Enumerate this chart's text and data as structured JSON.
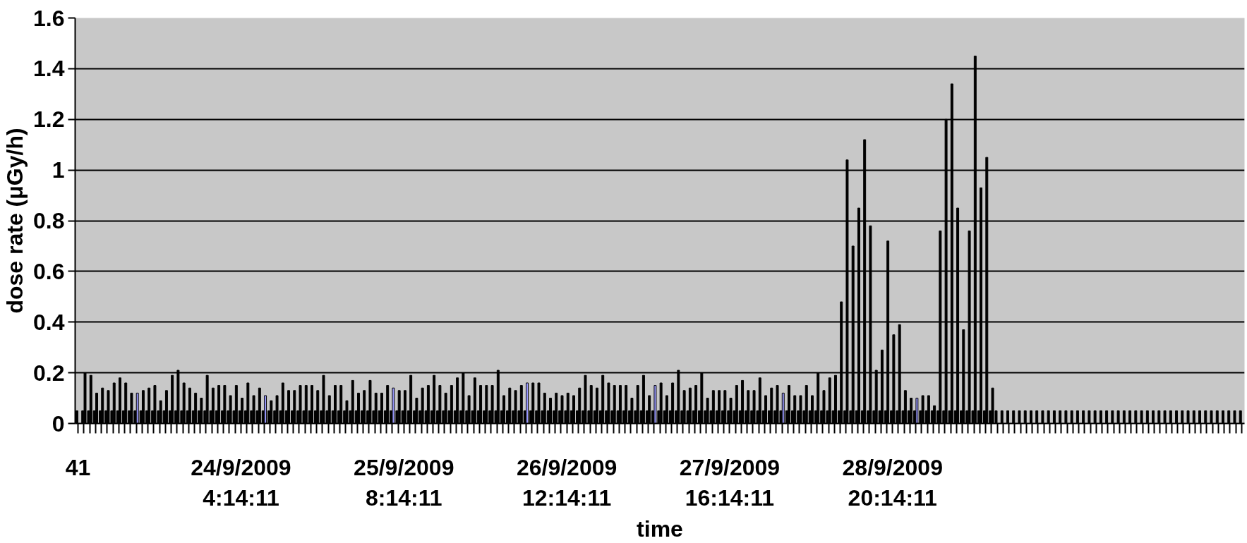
{
  "chart_data": {
    "type": "bar",
    "xlabel": "time",
    "ylabel": "dose rate (μGy/h)",
    "categories": [
      "41",
      null,
      null,
      null,
      null,
      null,
      null,
      null,
      null,
      null,
      null,
      null,
      null,
      null,
      null,
      null,
      null,
      null,
      null,
      null,
      null,
      null,
      null,
      null,
      null,
      null,
      null,
      null,
      "24/9/2009\n4:14:11",
      null,
      null,
      null,
      null,
      null,
      null,
      null,
      null,
      null,
      null,
      null,
      null,
      null,
      null,
      null,
      null,
      null,
      null,
      null,
      null,
      null,
      null,
      null,
      null,
      null,
      null,
      null,
      "25/9/2009\n8:14:11",
      null,
      null,
      null,
      null,
      null,
      null,
      null,
      null,
      null,
      null,
      null,
      null,
      null,
      null,
      null,
      null,
      null,
      null,
      null,
      null,
      null,
      null,
      null,
      null,
      null,
      null,
      null,
      "26/9/2009\n12:14:11",
      null,
      null,
      null,
      null,
      null,
      null,
      null,
      null,
      null,
      null,
      null,
      null,
      null,
      null,
      null,
      null,
      null,
      null,
      null,
      null,
      null,
      null,
      null,
      null,
      null,
      null,
      null,
      "27/9/2009\n16:14:11",
      null,
      null,
      null,
      null,
      null,
      null,
      null,
      null,
      null,
      null,
      null,
      null,
      null,
      null,
      null,
      null,
      null,
      null,
      null,
      null,
      null,
      null,
      null,
      null,
      null,
      null,
      null,
      "28/9/2009\n20:14:11",
      null,
      null,
      null,
      null,
      null,
      null,
      null,
      null,
      null,
      null,
      null,
      null,
      null,
      null,
      null,
      null,
      null,
      null,
      null,
      null,
      null,
      null,
      null,
      null,
      null,
      null,
      null,
      null,
      null,
      null,
      null,
      null,
      null,
      null,
      null,
      null,
      null,
      null,
      null,
      null,
      null,
      null,
      null,
      null,
      null,
      null,
      null,
      null,
      null,
      null,
      null,
      null,
      null,
      null,
      null,
      null,
      null,
      null,
      null,
      null
    ],
    "series": [
      {
        "color": "#000000",
        "values": [
          0.05,
          0.05,
          0.05,
          0.05,
          0.05,
          0.05,
          0.05,
          0.05,
          0.05,
          0.05,
          0.05,
          0.05,
          0.05,
          0.05,
          0.05,
          0.05,
          0.05,
          0.05,
          0.05,
          0.05,
          0.05,
          0.05,
          0.05,
          0.05,
          0.05,
          0.05,
          0.05,
          0.05,
          0.05,
          0.05,
          0.05,
          0.05,
          0.05,
          0.05,
          0.05,
          0.05,
          0.05,
          0.05,
          0.05,
          0.05,
          0.05,
          0.05,
          0.05,
          0.05,
          0.05,
          0.05,
          0.05,
          0.05,
          0.05,
          0.05,
          0.05,
          0.05,
          0.05,
          0.05,
          0.05,
          0.05,
          0.05,
          0.05,
          0.05,
          0.05,
          0.05,
          0.05,
          0.05,
          0.05,
          0.05,
          0.05,
          0.05,
          0.05,
          0.05,
          0.05,
          0.05,
          0.05,
          0.05,
          0.05,
          0.05,
          0.05,
          0.05,
          0.05,
          0.05,
          0.05,
          0.05,
          0.05,
          0.05,
          0.05,
          0.05,
          0.05,
          0.05,
          0.05,
          0.05,
          0.05,
          0.05,
          0.05,
          0.05,
          0.05,
          0.05,
          0.05,
          0.05,
          0.05,
          0.05,
          0.05,
          0.05,
          0.05,
          0.05,
          0.05,
          0.05,
          0.05,
          0.05,
          0.05,
          0.05,
          0.05,
          0.05,
          0.05,
          0.05,
          0.05,
          0.05,
          0.05,
          0.05,
          0.05,
          0.05,
          0.05,
          0.05,
          0.05,
          0.05,
          0.05,
          0.05,
          0.05,
          0.05,
          0.05,
          0.05,
          0.05,
          0.05,
          0.05,
          0.05,
          0.05,
          0.05,
          0.05,
          0.05,
          0.05,
          0.05,
          0.05,
          0.05,
          0.05,
          0.05,
          0.05,
          0.05,
          0.05,
          0.05,
          0.05,
          0.05,
          0.05,
          0.05,
          0.05,
          0.05,
          0.05,
          0.05,
          0.05,
          0.05,
          0.05,
          0.05,
          0.05,
          0.05,
          0.05,
          0.05,
          0.05,
          0.05,
          0.05,
          0.05,
          0.05,
          0.05,
          0.05,
          0.05,
          0.05,
          0.05,
          0.05,
          0.05,
          0.05,
          0.05,
          0.05,
          0.05,
          0.05,
          0.05,
          0.05,
          0.05,
          0.05,
          0.05,
          0.05,
          0.05,
          0.05,
          0.05,
          0.05,
          0.05,
          0.05,
          0.05,
          0.05,
          0.05,
          0.05,
          0.05,
          0.05,
          0.05,
          0.05,
          0.05
        ]
      },
      {
        "colors": [
          "#000000",
          "#000000",
          "#000000",
          "#000000",
          "#000000",
          "#000000",
          "#000000",
          "#000000",
          "#000000",
          "#000000",
          "#9999ff",
          "#000000",
          "#000000",
          "#000000",
          "#000000",
          "#000000",
          "#000000",
          "#000000",
          "#000000",
          "#000000",
          "#000000",
          "#000000",
          "#000000",
          "#000000",
          "#000000",
          "#000000",
          "#000000",
          "#000000",
          "#000000",
          "#000000",
          "#000000",
          "#000000",
          "#9999ff",
          "#000000",
          "#000000",
          "#000000",
          "#000000",
          "#000000",
          "#000000",
          "#000000",
          "#000000",
          "#000000",
          "#000000",
          "#000000",
          "#000000",
          "#000000",
          "#000000",
          "#000000",
          "#000000",
          "#000000",
          "#000000",
          "#000000",
          "#000000",
          "#000000",
          "#9999ff",
          "#000000",
          "#000000",
          "#000000",
          "#000000",
          "#000000",
          "#000000",
          "#000000",
          "#000000",
          "#000000",
          "#000000",
          "#000000",
          "#000000",
          "#000000",
          "#000000",
          "#000000",
          "#000000",
          "#000000",
          "#000000",
          "#000000",
          "#000000",
          "#000000",
          "#000000",
          "#9999ff",
          "#000000",
          "#000000",
          "#000000",
          "#000000",
          "#000000",
          "#000000",
          "#000000",
          "#000000",
          "#000000",
          "#000000",
          "#000000",
          "#000000",
          "#000000",
          "#000000",
          "#000000",
          "#000000",
          "#000000",
          "#000000",
          "#000000",
          "#000000",
          "#000000",
          "#9999ff",
          "#000000",
          "#000000",
          "#000000",
          "#000000",
          "#000000",
          "#000000",
          "#000000",
          "#000000",
          "#000000",
          "#000000",
          "#000000",
          "#000000",
          "#000000",
          "#000000",
          "#000000",
          "#000000",
          "#000000",
          "#000000",
          "#000000",
          "#000000",
          "#000000",
          "#9999ff",
          "#000000",
          "#000000",
          "#000000",
          "#000000",
          "#000000",
          "#000000",
          "#000000",
          "#000000",
          "#000000",
          "#000000",
          "#000000",
          "#000000",
          "#000000",
          "#000000",
          "#000000",
          "#000000",
          "#000000",
          "#000000",
          "#000000",
          "#000000",
          "#000000",
          "#000000",
          "#9999ff",
          "#000000",
          "#000000",
          "#000000",
          "#000000",
          "#000000",
          "#000000",
          "#000000",
          "#000000",
          "#000000",
          "#000000",
          "#000000",
          "#000000",
          "#000000",
          "#000000",
          "#000000",
          "#000000",
          "#000000",
          "#000000",
          "#000000",
          "#000000",
          "#000000",
          "#000000",
          "#000000",
          "#000000",
          "#000000",
          "#000000",
          "#000000",
          "#000000",
          "#000000",
          "#000000",
          "#000000",
          "#000000",
          "#000000",
          "#000000",
          "#000000",
          "#000000",
          "#000000",
          "#000000",
          "#000000",
          "#000000",
          "#000000",
          "#000000",
          "#000000",
          "#000000",
          "#000000",
          "#000000",
          "#000000",
          "#000000",
          "#000000",
          "#000000",
          "#000000",
          "#000000",
          "#000000",
          "#000000",
          "#000000",
          "#000000"
        ],
        "values": [
          null,
          0.2,
          0.19,
          0.12,
          0.14,
          0.13,
          0.16,
          0.18,
          0.16,
          0.12,
          0.12,
          0.13,
          0.14,
          0.15,
          0.09,
          0.13,
          0.19,
          0.21,
          0.16,
          0.14,
          0.12,
          0.1,
          0.19,
          0.14,
          0.15,
          0.15,
          0.11,
          0.15,
          0.1,
          0.16,
          0.11,
          0.14,
          0.11,
          0.09,
          0.11,
          0.16,
          0.13,
          0.13,
          0.15,
          0.15,
          0.15,
          0.13,
          0.19,
          0.11,
          0.15,
          0.15,
          0.09,
          0.17,
          0.12,
          0.13,
          0.17,
          0.12,
          0.12,
          0.15,
          0.14,
          0.13,
          0.13,
          0.19,
          0.1,
          0.14,
          0.15,
          0.19,
          0.15,
          0.12,
          0.15,
          0.18,
          0.2,
          0.11,
          0.18,
          0.15,
          0.15,
          0.15,
          0.21,
          0.11,
          0.14,
          0.13,
          0.15,
          0.16,
          0.16,
          0.16,
          0.12,
          0.1,
          0.12,
          0.11,
          0.12,
          0.11,
          0.14,
          0.19,
          0.15,
          0.14,
          0.19,
          0.16,
          0.15,
          0.15,
          0.15,
          0.1,
          0.15,
          0.19,
          0.11,
          0.15,
          0.16,
          0.11,
          0.16,
          0.21,
          0.13,
          0.14,
          0.15,
          0.2,
          0.1,
          0.13,
          0.13,
          0.13,
          0.1,
          0.15,
          0.17,
          0.13,
          0.13,
          0.18,
          0.11,
          0.14,
          0.15,
          0.12,
          0.15,
          0.11,
          0.11,
          0.15,
          0.11,
          0.2,
          0.13,
          0.18,
          0.19,
          0.48,
          1.04,
          0.7,
          0.85,
          1.12,
          0.78,
          0.21,
          0.29,
          0.72,
          0.35,
          0.39,
          0.13,
          0.1,
          0.1,
          0.11,
          0.11,
          0.07,
          0.76,
          1.2,
          1.34,
          0.85,
          0.37,
          0.76,
          1.45,
          0.93,
          1.05,
          0.14,
          null,
          null,
          null,
          null,
          null,
          null,
          null,
          null,
          null,
          null,
          null,
          null,
          null,
          null,
          null,
          null,
          null,
          null,
          null,
          null,
          null,
          null,
          null,
          null,
          null,
          null,
          null,
          null,
          null,
          null,
          null,
          null,
          null,
          null,
          null,
          null,
          null,
          null,
          null,
          null,
          null,
          null,
          null
        ]
      }
    ],
    "ylim": [
      0,
      1.6
    ],
    "yticks": [
      0,
      0.2,
      0.4,
      0.6,
      0.8,
      1,
      1.2,
      1.4,
      1.6
    ],
    "grid": "y"
  }
}
